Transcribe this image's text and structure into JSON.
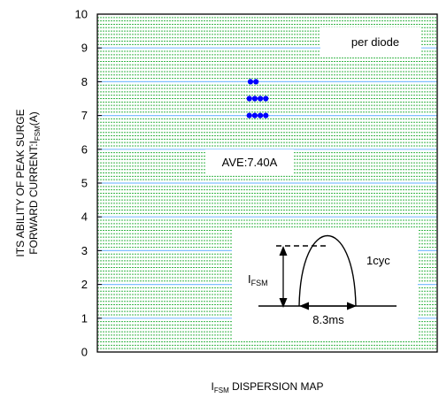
{
  "chart_data": {
    "type": "scatter",
    "title": "",
    "xlabel": "I_FSM DISPERSION MAP",
    "ylabel": "ITS ABILITY OF PEAK SURGE FORWARD CURRENT:I_FSM(A)",
    "ylim": [
      0,
      10
    ],
    "ytick_labels": [
      "0",
      "1",
      "2",
      "3",
      "4",
      "5",
      "6",
      "7",
      "8",
      "9",
      "10"
    ],
    "grid": true,
    "colors": {
      "major_grid": "#7fbfff",
      "minor_grid": "#39b54a",
      "points": "#0000ff"
    },
    "series": [
      {
        "values": [
          {
            "y": 8.0,
            "n": 2
          },
          {
            "y": 7.5,
            "n": 4
          },
          {
            "y": 7.0,
            "n": 4
          }
        ]
      }
    ],
    "annotations": {
      "legend_text": "per diode",
      "average_label": "AVE:7.40A",
      "inset": {
        "amplitude_label_main": "I",
        "amplitude_label_sub": "FSM",
        "cycle_label": "1cyc",
        "duration_label": "8.3ms"
      }
    },
    "xlabel_parts": {
      "main": "I",
      "sub": "FSM",
      "rest": " DISPERSION MAP"
    },
    "ylabel_parts": {
      "line1": "ITS ABILITY OF PEAK SURGE",
      "line2_main": "FORWARD CURRENT:I",
      "line2_sub": "FSM",
      "line2_rest": "(A)"
    }
  }
}
